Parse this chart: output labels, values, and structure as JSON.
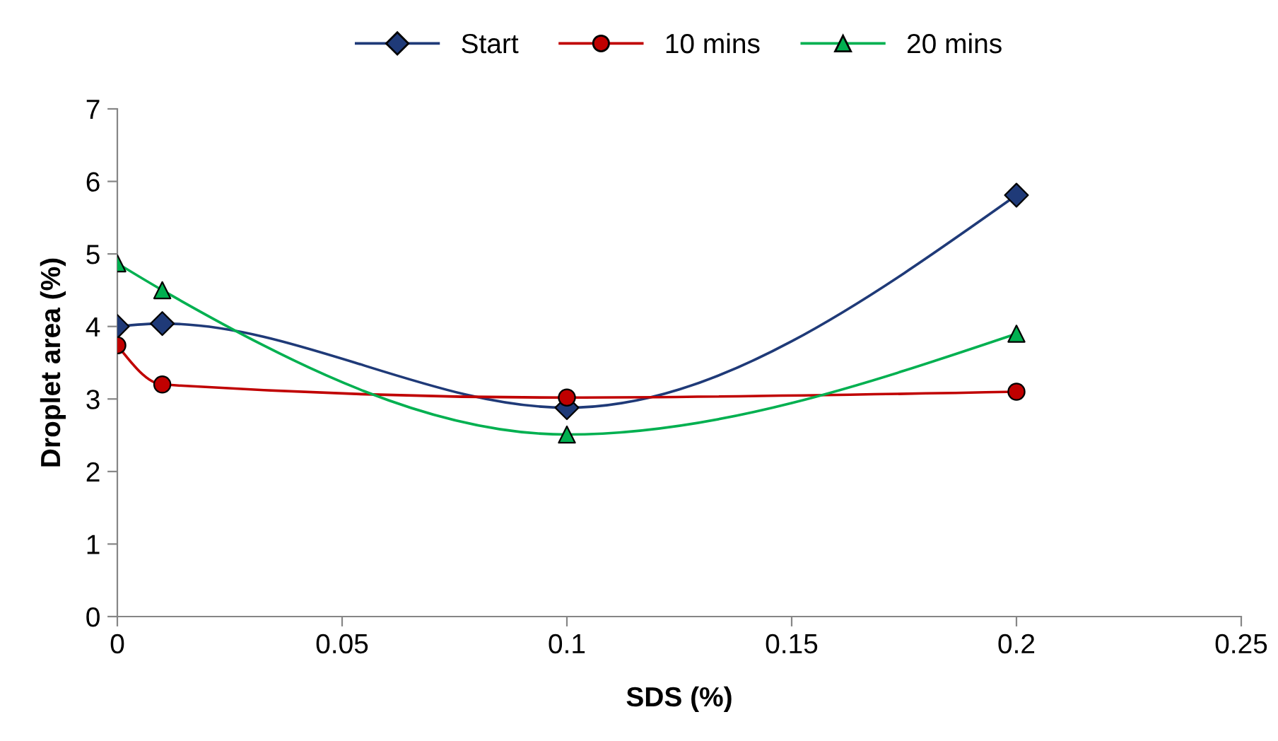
{
  "chart_data": {
    "type": "line",
    "xlabel": "SDS (%)",
    "ylabel": "Droplet area (%)",
    "x": [
      0,
      0.01,
      0.1,
      0.2
    ],
    "series": [
      {
        "name": "Start",
        "color": "#1f3a78",
        "values": [
          4.0,
          4.04,
          2.88,
          5.81
        ],
        "marker": "diamond"
      },
      {
        "name": "10 mins",
        "color": "#c00000",
        "values": [
          3.74,
          3.2,
          3.02,
          3.1
        ],
        "marker": "circle"
      },
      {
        "name": "20 mins",
        "color": "#00b050",
        "values": [
          4.87,
          4.5,
          2.51,
          3.9
        ],
        "marker": "triangle"
      }
    ],
    "xlim": [
      0,
      0.25
    ],
    "xticks": [
      {
        "value": 0,
        "label": "0"
      },
      0.05,
      0.1,
      0.15,
      0.2,
      0.25
    ],
    "ylim": [
      0,
      7
    ],
    "yticks": [
      0,
      1,
      2,
      3,
      4,
      5,
      6,
      7
    ],
    "grid": false,
    "legend": "top",
    "line_style": "solid"
  }
}
